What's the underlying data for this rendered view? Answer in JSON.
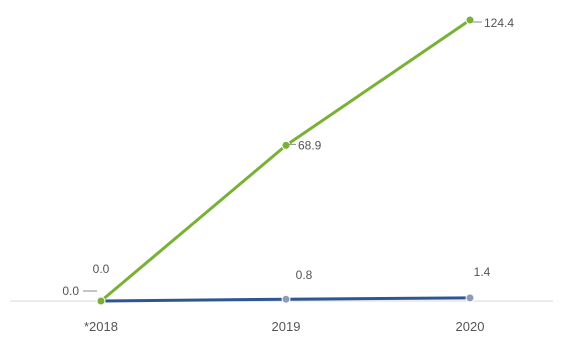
{
  "chart_data": {
    "type": "line",
    "title": "",
    "xlabel": "",
    "ylabel": "",
    "categories": [
      "*2018",
      "2019",
      "2020"
    ],
    "ylim": [
      0,
      124.4
    ],
    "grid": false,
    "legend": "none",
    "series": [
      {
        "color": "#78b136",
        "values": [
          0.0,
          68.9,
          124.4
        ],
        "labels": [
          "0.0",
          "68.9",
          "124.4"
        ]
      },
      {
        "color": "#2e5694",
        "values": [
          0.0,
          0.8,
          1.4
        ],
        "labels": [
          "0.0",
          "0.8",
          "1.4"
        ]
      }
    ]
  },
  "colors": {
    "axis": "#d9d9d9",
    "text": "#555555",
    "marker_blue": "#8e9bb8"
  }
}
